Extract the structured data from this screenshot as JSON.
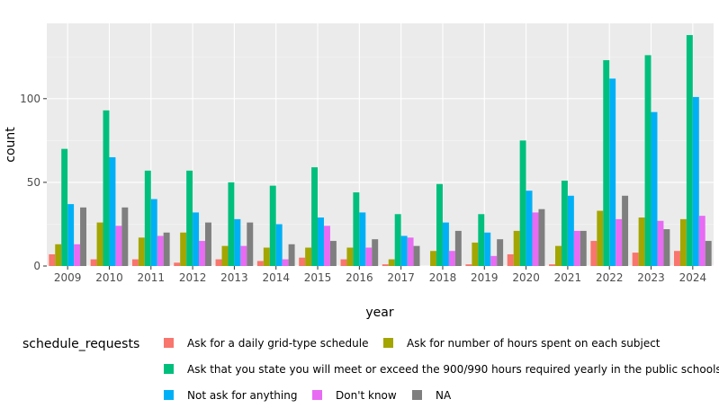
{
  "chart_data": {
    "type": "bar",
    "xlabel": "year",
    "ylabel": "count",
    "ylim": [
      0,
      145
    ],
    "yticks": [
      0,
      50,
      100
    ],
    "grid": true,
    "legend_position": "bottom",
    "legend_title": "schedule_requests",
    "categories": [
      "2009",
      "2010",
      "2011",
      "2012",
      "2013",
      "2014",
      "2015",
      "2016",
      "2017",
      "2018",
      "2019",
      "2020",
      "2021",
      "2022",
      "2023",
      "2024"
    ],
    "series": [
      {
        "name": "Ask for a daily grid-type schedule",
        "color": "#F8766D",
        "values": [
          7,
          4,
          4,
          2,
          4,
          3,
          5,
          4,
          1,
          0,
          1,
          7,
          1,
          15,
          8,
          9
        ]
      },
      {
        "name": "Ask for number of hours spent on each subject",
        "color": "#A3A500",
        "values": [
          13,
          26,
          17,
          20,
          12,
          11,
          11,
          11,
          4,
          9,
          14,
          21,
          12,
          33,
          29,
          28
        ]
      },
      {
        "name": "Ask that you state you will meet or exceed the 900/990 hours required yearly in the public schools",
        "color": "#00BF7D",
        "values": [
          70,
          93,
          57,
          57,
          50,
          48,
          59,
          44,
          31,
          49,
          31,
          75,
          51,
          123,
          126,
          138
        ]
      },
      {
        "name": "Not ask for anything",
        "color": "#00B0F6",
        "values": [
          37,
          65,
          40,
          32,
          28,
          25,
          29,
          32,
          18,
          26,
          20,
          45,
          42,
          112,
          92,
          101
        ]
      },
      {
        "name": "Don't know",
        "color": "#E76BF3",
        "values": [
          13,
          24,
          18,
          15,
          12,
          4,
          24,
          11,
          17,
          9,
          6,
          32,
          21,
          28,
          27,
          30
        ]
      },
      {
        "name": "NA",
        "color": "#7F7F7F",
        "values": [
          35,
          35,
          20,
          26,
          26,
          13,
          15,
          16,
          12,
          21,
          16,
          34,
          21,
          42,
          22,
          15
        ]
      }
    ]
  }
}
